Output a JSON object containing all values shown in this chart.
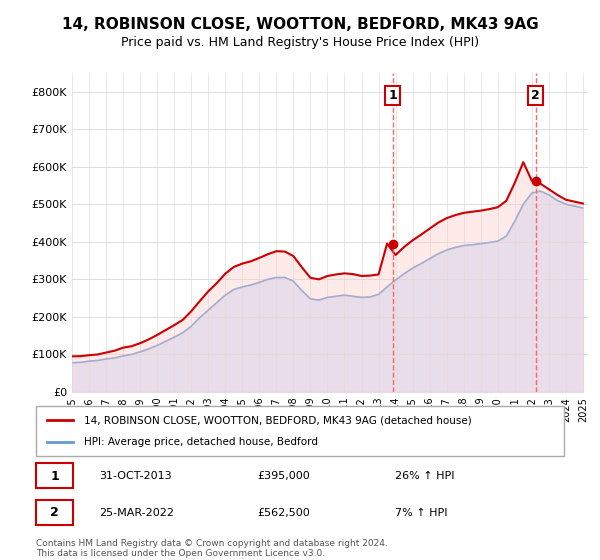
{
  "title": "14, ROBINSON CLOSE, WOOTTON, BEDFORD, MK43 9AG",
  "subtitle": "Price paid vs. HM Land Registry's House Price Index (HPI)",
  "legend_label_red": "14, ROBINSON CLOSE, WOOTTON, BEDFORD, MK43 9AG (detached house)",
  "legend_label_blue": "HPI: Average price, detached house, Bedford",
  "sale1_label": "1",
  "sale1_date": "31-OCT-2013",
  "sale1_price": "£395,000",
  "sale1_pct": "26% ↑ HPI",
  "sale2_label": "2",
  "sale2_date": "25-MAR-2022",
  "sale2_price": "£562,500",
  "sale2_pct": "7% ↑ HPI",
  "footer": "Contains HM Land Registry data © Crown copyright and database right 2024.\nThis data is licensed under the Open Government Licence v3.0.",
  "red_color": "#cc0000",
  "blue_color": "#6699cc",
  "blue_fill": "#cce0ff",
  "vline_color": "#ff6666",
  "ylim": [
    0,
    850000
  ],
  "yticks": [
    0,
    100000,
    200000,
    300000,
    400000,
    500000,
    600000,
    700000,
    800000
  ],
  "ytick_labels": [
    "£0",
    "£100K",
    "£200K",
    "£300K",
    "£400K",
    "£500K",
    "£600K",
    "£700K",
    "£800K"
  ],
  "sale1_x": 2013.83,
  "sale1_y": 395000,
  "sale2_x": 2022.23,
  "sale2_y": 562500,
  "hpi_years": [
    1995,
    1995.5,
    1996,
    1996.5,
    1997,
    1997.5,
    1998,
    1998.5,
    1999,
    1999.5,
    2000,
    2000.5,
    2001,
    2001.5,
    2002,
    2002.5,
    2003,
    2003.5,
    2004,
    2004.5,
    2005,
    2005.5,
    2006,
    2006.5,
    2007,
    2007.5,
    2008,
    2008.5,
    2009,
    2009.5,
    2010,
    2010.5,
    2011,
    2011.5,
    2012,
    2012.5,
    2013,
    2013.5,
    2014,
    2014.5,
    2015,
    2015.5,
    2016,
    2016.5,
    2017,
    2017.5,
    2018,
    2018.5,
    2019,
    2019.5,
    2020,
    2020.5,
    2021,
    2021.5,
    2022,
    2022.5,
    2023,
    2023.5,
    2024,
    2024.5,
    2025
  ],
  "hpi_values": [
    78000,
    79000,
    82000,
    84000,
    88000,
    91000,
    96000,
    100000,
    107000,
    115000,
    124000,
    135000,
    146000,
    158000,
    175000,
    198000,
    218000,
    238000,
    258000,
    273000,
    280000,
    285000,
    292000,
    300000,
    305000,
    305000,
    295000,
    270000,
    248000,
    245000,
    252000,
    255000,
    258000,
    255000,
    252000,
    253000,
    260000,
    280000,
    298000,
    315000,
    330000,
    342000,
    355000,
    368000,
    378000,
    385000,
    390000,
    392000,
    395000,
    398000,
    402000,
    415000,
    455000,
    500000,
    530000,
    535000,
    525000,
    510000,
    500000,
    495000,
    490000
  ],
  "price_years": [
    1995,
    1995.5,
    1996,
    1996.5,
    1997,
    1997.5,
    1998,
    1998.5,
    1999,
    1999.5,
    2000,
    2000.5,
    2001,
    2001.5,
    2002,
    2002.5,
    2003,
    2003.5,
    2004,
    2004.5,
    2005,
    2005.5,
    2006,
    2006.5,
    2007,
    2007.5,
    2008,
    2008.5,
    2009,
    2009.5,
    2010,
    2010.5,
    2011,
    2011.5,
    2012,
    2012.5,
    2013,
    2013.5,
    2014,
    2014.5,
    2015,
    2015.5,
    2016,
    2016.5,
    2017,
    2017.5,
    2018,
    2018.5,
    2019,
    2019.5,
    2020,
    2020.5,
    2021,
    2021.5,
    2022,
    2022.5,
    2023,
    2023.5,
    2024,
    2024.5,
    2025
  ],
  "price_values": [
    95000,
    95500,
    98000,
    100000,
    105000,
    110000,
    118000,
    122000,
    130000,
    140000,
    152000,
    165000,
    178000,
    192000,
    215000,
    242000,
    268000,
    290000,
    315000,
    333000,
    342000,
    348000,
    357000,
    367000,
    375000,
    374000,
    362000,
    332000,
    304000,
    300000,
    309000,
    313000,
    316000,
    314000,
    309000,
    310000,
    313000,
    395000,
    365000,
    386000,
    404000,
    419000,
    435000,
    451000,
    463000,
    471000,
    477000,
    480000,
    483000,
    487000,
    492000,
    509000,
    557000,
    612000,
    562500,
    555000,
    540000,
    525000,
    512000,
    507000,
    502000
  ],
  "xtick_years": [
    1995,
    1996,
    1997,
    1998,
    1999,
    2000,
    2001,
    2002,
    2003,
    2004,
    2005,
    2006,
    2007,
    2008,
    2009,
    2010,
    2011,
    2012,
    2013,
    2014,
    2015,
    2016,
    2017,
    2018,
    2019,
    2020,
    2021,
    2022,
    2023,
    2024,
    2025
  ]
}
